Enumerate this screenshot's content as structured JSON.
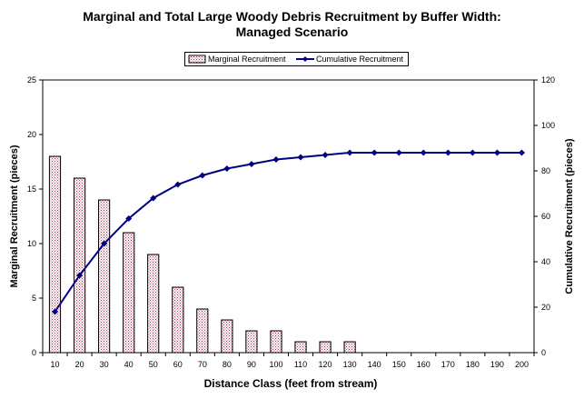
{
  "chart_data": {
    "type": "bar",
    "title": "Marginal and Total Large Woody Debris Recruitment by Buffer Width:",
    "subtitle": "Managed Scenario",
    "xlabel": "Distance Class (feet from stream)",
    "ylabel_left": "Marginal Recruitment (pieces)",
    "ylabel_right": "Cumulative Recruitment (pieces)",
    "categories": [
      "10",
      "20",
      "30",
      "40",
      "50",
      "60",
      "70",
      "80",
      "90",
      "100",
      "110",
      "120",
      "130",
      "140",
      "150",
      "160",
      "170",
      "180",
      "190",
      "200"
    ],
    "ylim_left": [
      0,
      25
    ],
    "yticks_left": [
      "0",
      "5",
      "10",
      "15",
      "20",
      "25"
    ],
    "ylim_right": [
      0,
      120
    ],
    "yticks_right": [
      "0",
      "20",
      "40",
      "60",
      "80",
      "100",
      "120"
    ],
    "legend_position": "top-center",
    "grid": false,
    "series": [
      {
        "name": "Marginal Recruitment",
        "type": "bar",
        "axis": "left",
        "values": [
          18,
          16,
          14,
          11,
          9,
          6,
          4,
          3,
          2,
          2,
          1,
          1,
          1,
          0,
          0,
          0,
          0,
          0,
          0,
          0
        ]
      },
      {
        "name": "Cumulative Recruitment",
        "type": "line",
        "axis": "right",
        "color": "#000080",
        "values": [
          18,
          34,
          48,
          59,
          68,
          74,
          78,
          81,
          83,
          85,
          86,
          87,
          88,
          88,
          88,
          88,
          88,
          88,
          88,
          88
        ]
      }
    ]
  }
}
